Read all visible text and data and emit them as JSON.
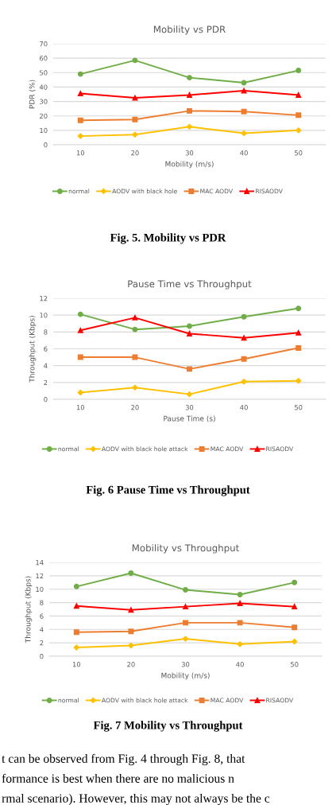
{
  "chart_data": [
    {
      "type": "line",
      "title": "Mobility vs PDR",
      "xlabel": "Mobility (m/s)",
      "ylabel": "PDR (%)",
      "categories": [
        "10",
        "20",
        "30",
        "40",
        "50"
      ],
      "ylim": [
        0,
        70
      ],
      "yticks": [
        0,
        10,
        20,
        30,
        40,
        50,
        60,
        70
      ],
      "grid": "y",
      "legend": "bottom",
      "annotations": [
        "Fig. 5. Mobility vs PDR"
      ],
      "series": [
        {
          "name": "normal",
          "color": "#70ad47",
          "marker": "circle",
          "values": [
            49,
            58.5,
            46.5,
            43,
            51.5
          ]
        },
        {
          "name": "AODV with black hole",
          "color": "#ffc000",
          "marker": "diamond",
          "values": [
            6,
            7,
            12.5,
            8,
            10
          ]
        },
        {
          "name": "MAC AODV",
          "color": "#ed7d31",
          "marker": "square",
          "values": [
            17,
            17.5,
            23.5,
            23,
            20.5
          ]
        },
        {
          "name": "RISAODV",
          "color": "#ff0000",
          "marker": "triangle",
          "values": [
            35.5,
            32.5,
            34.5,
            37.5,
            34.5
          ]
        }
      ]
    },
    {
      "type": "line",
      "title": "Pause Time vs Throughput",
      "xlabel": "Pause Time (s)",
      "ylabel": "Throughput (Kbps)",
      "categories": [
        "10",
        "20",
        "30",
        "40",
        "50"
      ],
      "ylim": [
        0,
        12
      ],
      "yticks": [
        0,
        2,
        4,
        6,
        8,
        10,
        12
      ],
      "grid": "y",
      "legend": "bottom",
      "annotations": [
        "Fig. 6 Pause Time vs Throughput"
      ],
      "series": [
        {
          "name": "normal",
          "color": "#70ad47",
          "marker": "circle",
          "values": [
            10.1,
            8.3,
            8.7,
            9.8,
            10.8
          ]
        },
        {
          "name": "AODV with black hole attack",
          "color": "#ffc000",
          "marker": "diamond",
          "values": [
            0.8,
            1.4,
            0.6,
            2.1,
            2.2
          ]
        },
        {
          "name": "MAC AODV",
          "color": "#ed7d31",
          "marker": "square",
          "values": [
            5,
            5,
            3.6,
            4.8,
            6.1
          ]
        },
        {
          "name": "RISAODV",
          "color": "#ff0000",
          "marker": "triangle",
          "values": [
            8.2,
            9.7,
            7.8,
            7.3,
            7.9
          ]
        }
      ]
    },
    {
      "type": "line",
      "title": "Mobility vs Throughput",
      "xlabel": "Mobility (m/s)",
      "ylabel": "Throughput (Kbps)",
      "categories": [
        "10",
        "20",
        "30",
        "40",
        "50"
      ],
      "ylim": [
        0,
        14
      ],
      "yticks": [
        0,
        2,
        4,
        6,
        8,
        10,
        12,
        14
      ],
      "grid": "y",
      "legend": "bottom",
      "annotations": [
        "Fig. 7 Mobility vs Throughput",
        "t can be observed from Fig. 4 through Fig. 8, that",
        "formance is best when there are no malicious n",
        "rmal scenario). However, this may not always be the c"
      ],
      "series": [
        {
          "name": "normal",
          "color": "#70ad47",
          "marker": "circle",
          "values": [
            10.4,
            12.4,
            9.9,
            9.2,
            11
          ]
        },
        {
          "name": "AODV with black hole attack",
          "color": "#ffc000",
          "marker": "diamond",
          "values": [
            1.3,
            1.6,
            2.6,
            1.8,
            2.2
          ]
        },
        {
          "name": "MAC AODV",
          "color": "#ed7d31",
          "marker": "square",
          "values": [
            3.6,
            3.7,
            5,
            5,
            4.3
          ]
        },
        {
          "name": "RISAODV",
          "color": "#ff0000",
          "marker": "triangle",
          "values": [
            7.5,
            6.9,
            7.4,
            7.9,
            7.4
          ]
        }
      ]
    }
  ]
}
